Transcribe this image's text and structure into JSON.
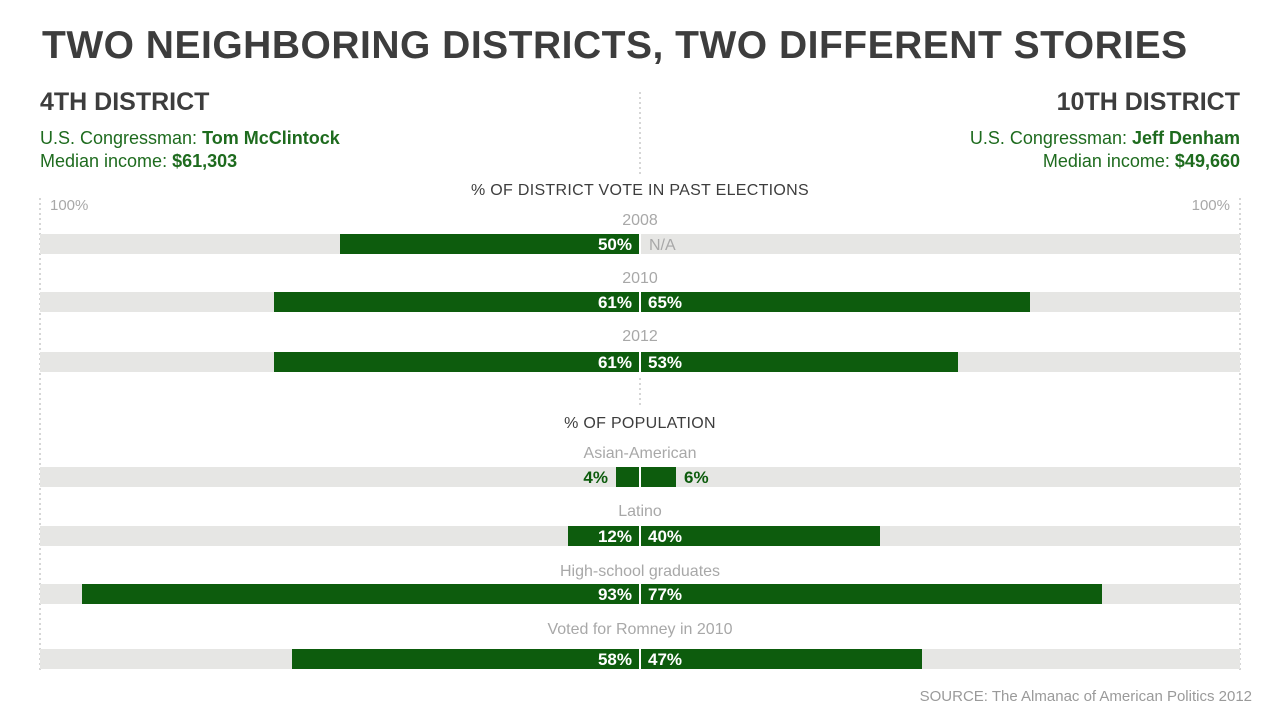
{
  "title": "TWO NEIGHBORING DISTRICTS, TWO DIFFERENT STORIES",
  "district_left": {
    "name": "4TH DISTRICT",
    "congressman_label": "U.S. Congressman: ",
    "congressman": "Tom McClintock",
    "income_label": "Median income: ",
    "income": "$61,303"
  },
  "district_right": {
    "name": "10TH DISTRICT",
    "congressman_label": "U.S. Congressman: ",
    "congressman": "Jeff Denham",
    "income_label": "Median income: ",
    "income": "$49,660"
  },
  "source": "SOURCE: The Almanac of American Politics 2012",
  "colors": {
    "bar": "#0d5c0d",
    "track": "#e6e6e4",
    "label_muted": "#a8a8a8",
    "green_text": "#1e6b1e"
  },
  "chart_data": {
    "type": "bar",
    "orientation": "horizontal-diverging",
    "axis_max_label_left": "100%",
    "axis_max_label_right": "100%",
    "xlim": [
      0,
      100
    ],
    "sections": [
      {
        "title": "% OF DISTRICT VOTE IN PAST ELECTIONS",
        "rows": [
          {
            "category": "2008",
            "left": 50,
            "right": null,
            "left_label": "50%",
            "right_label": "N/A"
          },
          {
            "category": "2010",
            "left": 61,
            "right": 65,
            "left_label": "61%",
            "right_label": "65%"
          },
          {
            "category": "2012",
            "left": 61,
            "right": 53,
            "left_label": "61%",
            "right_label": "53%"
          }
        ]
      },
      {
        "title": "% OF POPULATION",
        "rows": [
          {
            "category": "Asian-American",
            "left": 4,
            "right": 6,
            "left_label": "4%",
            "right_label": "6%"
          },
          {
            "category": "Latino",
            "left": 12,
            "right": 40,
            "left_label": "12%",
            "right_label": "40%"
          },
          {
            "category": "High-school graduates",
            "left": 93,
            "right": 77,
            "left_label": "93%",
            "right_label": "77%"
          },
          {
            "category": "Voted for Romney in 2010",
            "left": 58,
            "right": 47,
            "left_label": "58%",
            "right_label": "47%"
          }
        ]
      }
    ]
  }
}
